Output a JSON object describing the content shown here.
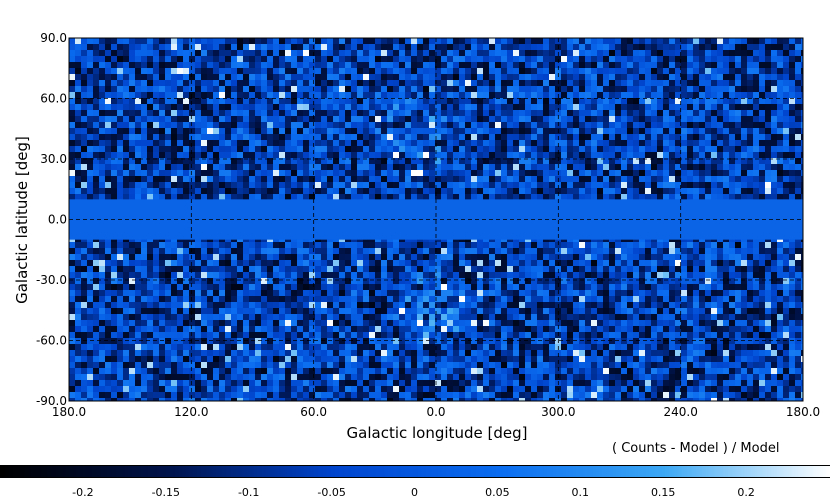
{
  "chart_data": {
    "type": "heatmap",
    "projection": "plate-carree all-sky map",
    "xlabel": "Galactic longitude [deg]",
    "ylabel": "Galactic latitude [deg]",
    "x_ticks": [
      "180.0",
      "120.0",
      "60.0",
      "0.0",
      "300.0",
      "240.0",
      "180.0"
    ],
    "y_ticks": [
      "90.0",
      "60.0",
      "30.0",
      "0.0",
      "-30.0",
      "-60.0",
      "-90.0"
    ],
    "x_range": [
      180,
      -180
    ],
    "y_range": [
      -90,
      90
    ],
    "grid": true,
    "grid_style": "dashed",
    "colorbar": {
      "label": "( Counts - Model ) / Model",
      "ticks": [
        "-0.2",
        "-0.15",
        "-0.1",
        "-0.05",
        "0",
        "0.05",
        "0.1",
        "0.15",
        "0.2"
      ],
      "range": [
        -0.25,
        0.25
      ],
      "colormap": [
        "#000000",
        "#00134a",
        "#0044cc",
        "#0a6cf0",
        "#3ca8f4",
        "#ffffff"
      ]
    },
    "masked_band_color": "#0b63e6",
    "masked_band_lat": [
      -10,
      10
    ]
  }
}
